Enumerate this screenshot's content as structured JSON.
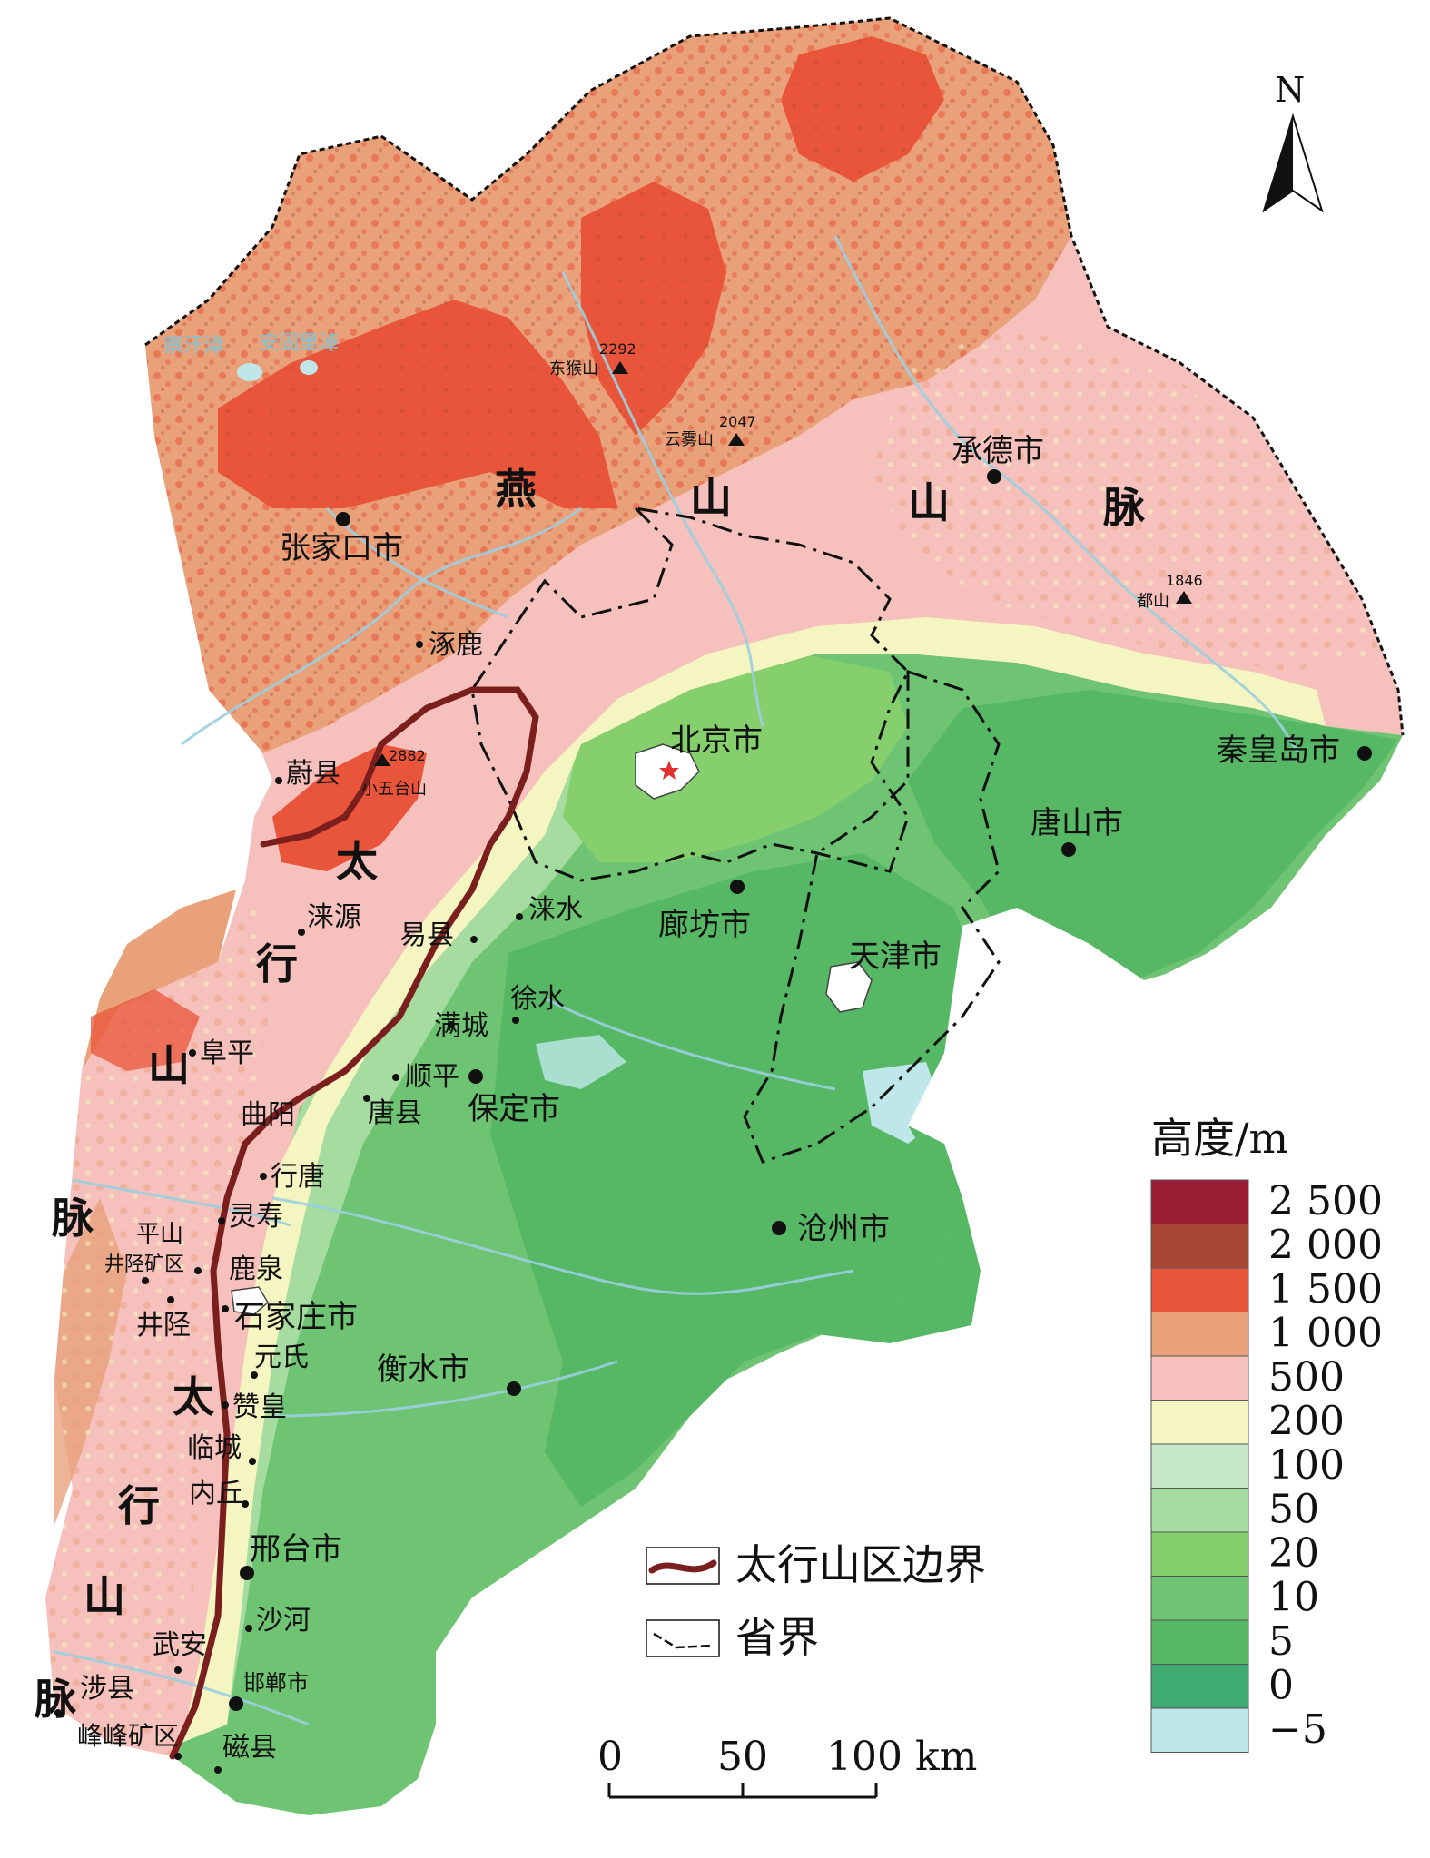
{
  "north_label": "N",
  "mountains": [
    {
      "key": "yan",
      "chars": [
        "燕",
        "山",
        "山",
        "脉"
      ]
    },
    {
      "key": "taihang",
      "chars": [
        "太",
        "行",
        "山",
        "脉",
        "太",
        "行",
        "山",
        "脉"
      ]
    }
  ],
  "cities": {
    "zhangjiakou": "张家口市",
    "chengde": "承德市",
    "beijing": "北京市",
    "qinhuangdao": "秦皇岛市",
    "tangshan": "唐山市",
    "langfang": "廊坊市",
    "tianjin": "天津市",
    "baoding": "保定市",
    "cangzhou": "沧州市",
    "shijiazhuang": "石家庄市",
    "hengshui": "衡水市",
    "xingtai": "邢台市",
    "handan": "邯郸市"
  },
  "counties": {
    "zhuolu": "涿鹿",
    "yuxian": "蔚县",
    "laiyuan": "涞源",
    "yixian": "易县",
    "laishui": "涞水",
    "xushui": "徐水",
    "mancheng": "满城",
    "shunping": "顺平",
    "tangxian": "唐县",
    "fuping": "阜平",
    "quyang": "曲阳",
    "xingtang": "行唐",
    "lingshou": "灵寿",
    "pingshan": "平山",
    "jingxingkuangqu": "井陉矿区",
    "luquan": "鹿泉",
    "jingxing": "井陉",
    "yuanshi": "元氏",
    "zanhuang": "赞皇",
    "lincheng": "临城",
    "neiqiu": "内丘",
    "shahe": "沙河",
    "wuan": "武安",
    "shexian": "涉县",
    "fengfengkuangqu": "峰峰矿区",
    "cixian": "磁县"
  },
  "peaks": [
    {
      "name": "东猴山",
      "elev": "2292"
    },
    {
      "name": "云雾山",
      "elev": "2047"
    },
    {
      "name": "都山",
      "elev": "1846"
    },
    {
      "name": "小五台山",
      "elev": "2882"
    }
  ],
  "lakes": {
    "zhangbei": "察汗淖",
    "anguli": "安固里淖"
  },
  "map_legend": {
    "boundary_label": "太行山区边界",
    "province_label": "省界"
  },
  "scalebar": {
    "ticks": [
      "0",
      "50",
      "100 km"
    ]
  },
  "elevation_legend": {
    "title": "高度/m",
    "classes": [
      {
        "label": "2 500",
        "color": "#9b1c35"
      },
      {
        "label": "2 000",
        "color": "#a84634"
      },
      {
        "label": "1 500",
        "color": "#e8553a"
      },
      {
        "label": "1 000",
        "color": "#e9a17a"
      },
      {
        "label": "500",
        "color": "#f6c0bd"
      },
      {
        "label": "200",
        "color": "#f5f5c2"
      },
      {
        "label": "100",
        "color": "#c7e8cb"
      },
      {
        "label": "50",
        "color": "#a6dca0"
      },
      {
        "label": "20",
        "color": "#85cf6d"
      },
      {
        "label": "10",
        "color": "#6ec472"
      },
      {
        "label": "5",
        "color": "#56b765"
      },
      {
        "label": "0",
        "color": "#3fab72"
      },
      {
        "label": "−5",
        "color": "#bfe7ea"
      }
    ]
  },
  "colors": {
    "taihang_boundary": "#7a1e1e",
    "river": "#9ccfe0",
    "sea": "#ffffff"
  }
}
